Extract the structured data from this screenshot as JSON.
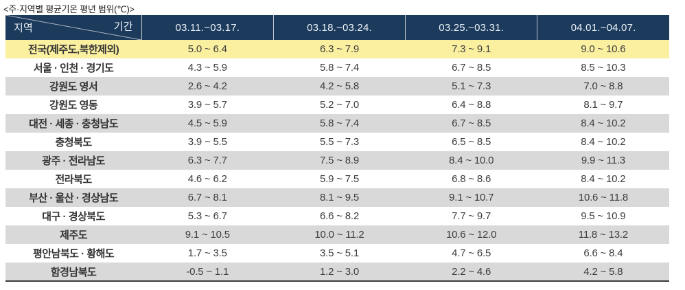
{
  "title": "<주·지역별 평균기온 평년 범위(℃)>",
  "colors": {
    "header_bg": "#1b3a5c",
    "header_text": "#edf2f8",
    "highlight_row_bg": "#fbf0a0",
    "stripe_row_bg": "#d9d9d9",
    "body_text": "#3d3d3d",
    "bottom_border": "#3a3a3a",
    "header_divider": "#c3c9d1"
  },
  "table": {
    "corner": {
      "row_label": "지역",
      "col_label": "기간"
    },
    "columns": [
      "03.11.~03.17.",
      "03.18.~03.24.",
      "03.25.~03.31.",
      "04.01.~04.07."
    ],
    "rows": [
      {
        "region": "전국(제주도,북한제외)",
        "highlight": true,
        "values": [
          "5.0 ~ 6.4",
          "6.3 ~ 7.9",
          "7.3 ~ 9.1",
          "9.0 ~ 10.6"
        ]
      },
      {
        "region": "서울 · 인천 · 경기도",
        "highlight": false,
        "values": [
          "4.3 ~ 5.9",
          "5.8 ~ 7.4",
          "6.7 ~ 8.5",
          "8.5 ~ 10.3"
        ]
      },
      {
        "region": "강원도 영서",
        "highlight": false,
        "values": [
          "2.6 ~ 4.2",
          "4.2 ~ 5.8",
          "5.1 ~ 7.3",
          "7.0 ~ 8.8"
        ]
      },
      {
        "region": "강원도 영동",
        "highlight": false,
        "values": [
          "3.9 ~ 5.7",
          "5.2 ~ 7.0",
          "6.4 ~ 8.8",
          "8.1 ~ 9.7"
        ]
      },
      {
        "region": "대전 · 세종 · 충청남도",
        "highlight": false,
        "values": [
          "4.5 ~ 5.9",
          "5.8 ~ 7.4",
          "6.7 ~ 8.5",
          "8.4 ~ 10.2"
        ]
      },
      {
        "region": "충청북도",
        "highlight": false,
        "values": [
          "3.9 ~ 5.5",
          "5.5 ~ 7.3",
          "6.5 ~ 8.5",
          "8.4 ~ 10.2"
        ]
      },
      {
        "region": "광주 · 전라남도",
        "highlight": false,
        "values": [
          "6.3 ~ 7.7",
          "7.5 ~ 8.9",
          "8.4 ~ 10.0",
          "9.9 ~ 11.3"
        ]
      },
      {
        "region": "전라북도",
        "highlight": false,
        "values": [
          "4.6 ~ 6.2",
          "5.9 ~ 7.5",
          "6.8 ~ 8.6",
          "8.4 ~ 10.2"
        ]
      },
      {
        "region": "부산 · 울산 · 경상남도",
        "highlight": false,
        "values": [
          "6.7 ~ 8.1",
          "8.1 ~ 9.5",
          "9.1 ~ 10.7",
          "10.6 ~ 11.8"
        ]
      },
      {
        "region": "대구 · 경상북도",
        "highlight": false,
        "values": [
          "5.3 ~ 6.7",
          "6.6 ~ 8.2",
          "7.7 ~ 9.7",
          "9.5 ~ 10.9"
        ]
      },
      {
        "region": "제주도",
        "highlight": false,
        "values": [
          "9.1 ~ 10.5",
          "10.0 ~ 11.2",
          "10.6 ~ 12.0",
          "11.8 ~ 13.2"
        ]
      },
      {
        "region": "평안남북도 · 황해도",
        "highlight": false,
        "values": [
          "1.7 ~ 3.5",
          "3.5 ~ 5.1",
          "4.7 ~ 6.5",
          "6.6 ~ 8.4"
        ]
      },
      {
        "region": "함경남북도",
        "highlight": false,
        "values": [
          "-0.5 ~ 1.1",
          "1.2 ~ 3.0",
          "2.2 ~ 4.6",
          "4.2 ~ 5.8"
        ]
      }
    ]
  }
}
